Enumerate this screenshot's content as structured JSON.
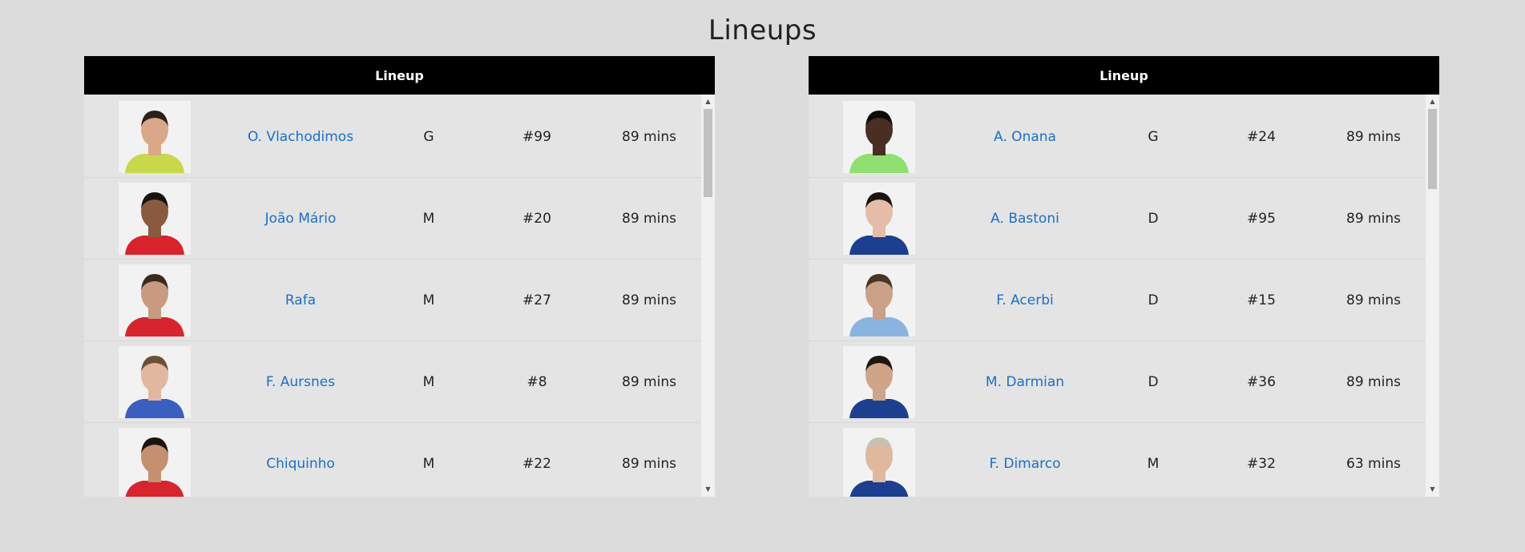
{
  "page": {
    "title": "Lineups"
  },
  "lineups": [
    {
      "header": "Lineup",
      "players": [
        {
          "name": "O. Vlachodimos",
          "position": "G",
          "number": "#99",
          "minutes": "89 mins",
          "kit_color": "#c8d84a",
          "skin": "#d9a888",
          "hair": "#2a2018"
        },
        {
          "name": "João Mário",
          "position": "M",
          "number": "#20",
          "minutes": "89 mins",
          "kit_color": "#d8242c",
          "skin": "#8a5a40",
          "hair": "#1a1410"
        },
        {
          "name": "Rafa",
          "position": "M",
          "number": "#27",
          "minutes": "89 mins",
          "kit_color": "#d8242c",
          "skin": "#c89a80",
          "hair": "#3a2a20"
        },
        {
          "name": "F. Aursnes",
          "position": "M",
          "number": "#8",
          "minutes": "89 mins",
          "kit_color": "#3a5fc0",
          "skin": "#e0b8a0",
          "hair": "#6a5038"
        },
        {
          "name": "Chiquinho",
          "position": "M",
          "number": "#22",
          "minutes": "89 mins",
          "kit_color": "#d8242c",
          "skin": "#c49070",
          "hair": "#1a1410"
        }
      ]
    },
    {
      "header": "Lineup",
      "players": [
        {
          "name": "A. Onana",
          "position": "G",
          "number": "#24",
          "minutes": "89 mins",
          "kit_color": "#8fe070",
          "skin": "#4a2e22",
          "hair": "#0e0a08"
        },
        {
          "name": "A. Bastoni",
          "position": "D",
          "number": "#95",
          "minutes": "89 mins",
          "kit_color": "#1d3f90",
          "skin": "#e4bca8",
          "hair": "#1a1410"
        },
        {
          "name": "F. Acerbi",
          "position": "D",
          "number": "#15",
          "minutes": "89 mins",
          "kit_color": "#8ab4e0",
          "skin": "#caa088",
          "hair": "#4a3624"
        },
        {
          "name": "M. Darmian",
          "position": "D",
          "number": "#36",
          "minutes": "89 mins",
          "kit_color": "#1d3f90",
          "skin": "#d0a488",
          "hair": "#1e1610"
        },
        {
          "name": "F. Dimarco",
          "position": "M",
          "number": "#32",
          "minutes": "63 mins",
          "kit_color": "#1d3f90",
          "skin": "#e0b8a0",
          "hair": "#c8c0b0"
        }
      ]
    }
  ],
  "icons": {
    "scroll_up": "▲",
    "scroll_down": "▼"
  }
}
